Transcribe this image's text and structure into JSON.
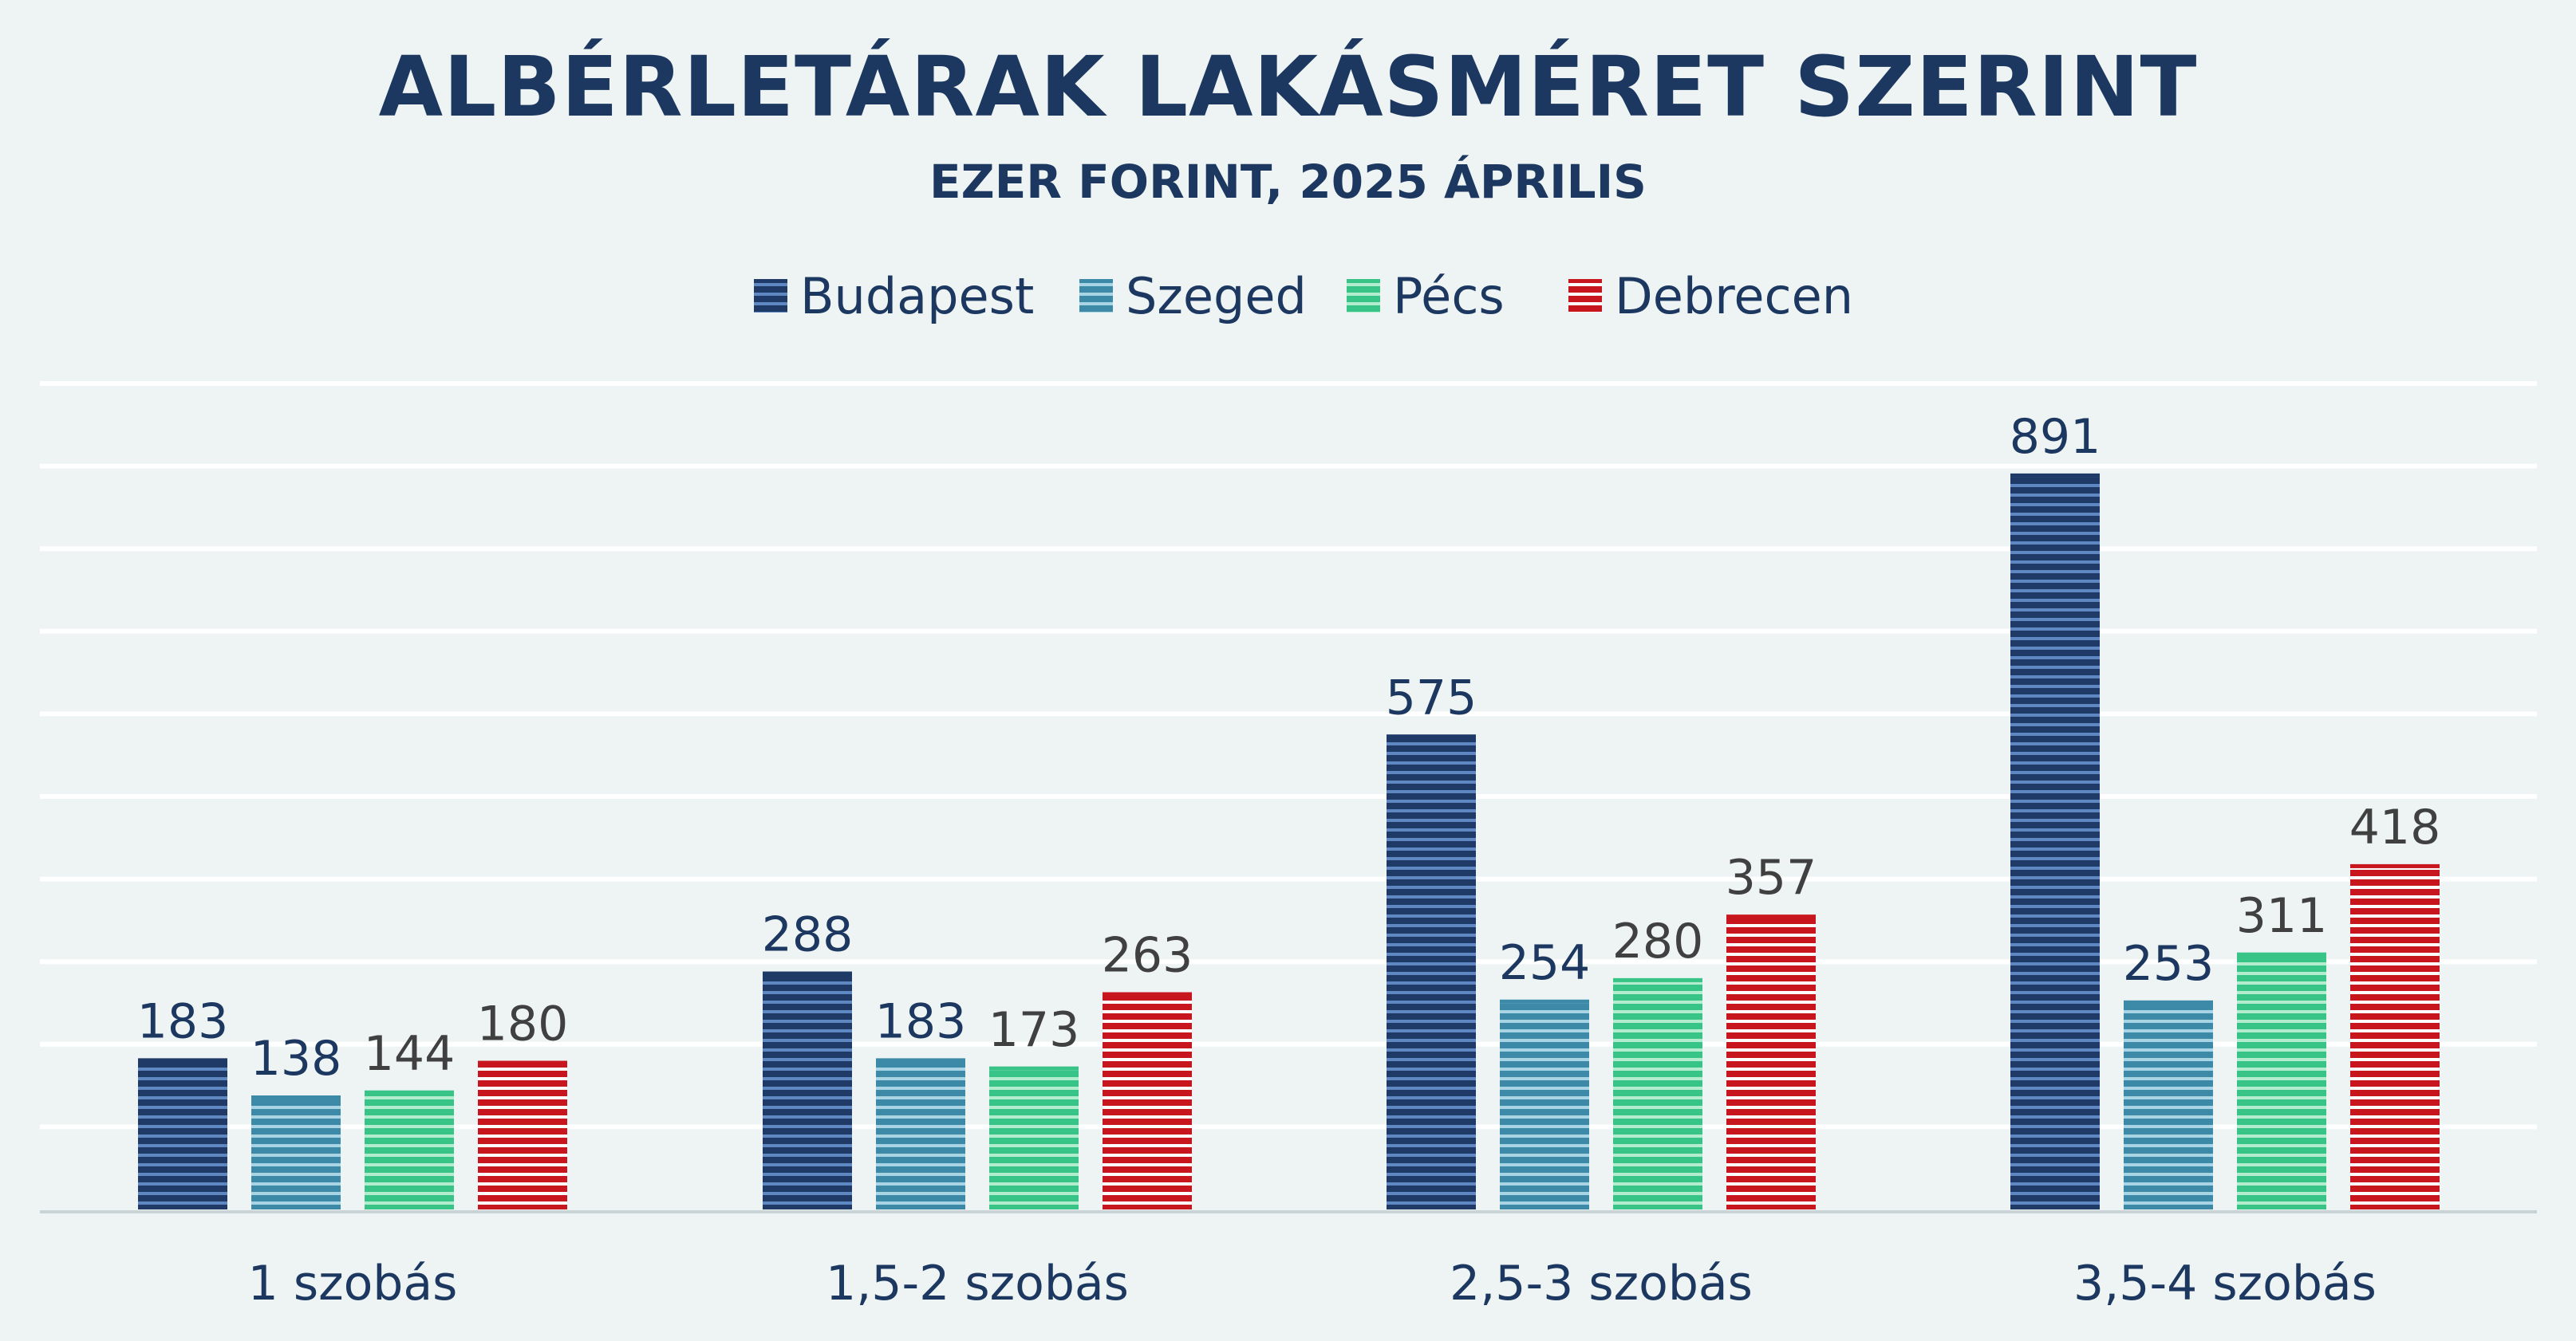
{
  "title": "ALBÉRLETÁRAK LAKÁSMÉRET SZERINT",
  "subtitle": "EZER FORINT, 2025 ÁPRILIS",
  "colors": {
    "background": "#eef4f4",
    "text_dark": "#1d3860",
    "label_gray": "#404040",
    "grid": "#ffffff",
    "axis": "#c9d3d6"
  },
  "chart_data": {
    "type": "bar",
    "categories": [
      "1 szobás",
      "1,5-2 szobás",
      "2,5-3 szobás",
      "3,5-4 szobás"
    ],
    "series": [
      {
        "name": "Budapest",
        "values": [
          183,
          288,
          575,
          891
        ],
        "color": "#1f3a66",
        "stripe": "#5f88c2",
        "label_color": "#1d3860"
      },
      {
        "name": "Szeged",
        "values": [
          138,
          183,
          254,
          253
        ],
        "color": "#3d8aa8",
        "stripe": "#a9d4e4",
        "label_color": "#1d3860"
      },
      {
        "name": "Pécs",
        "values": [
          144,
          173,
          280,
          311
        ],
        "color": "#38c487",
        "stripe": "#b4ecd0",
        "label_color": "#404040"
      },
      {
        "name": "Debrecen",
        "values": [
          180,
          263,
          357,
          418
        ],
        "color": "#c8161e",
        "stripe": "#ffffff",
        "label_color": "#404040"
      }
    ],
    "ylim": [
      0,
      1000
    ],
    "grid": true,
    "legend": "top"
  }
}
